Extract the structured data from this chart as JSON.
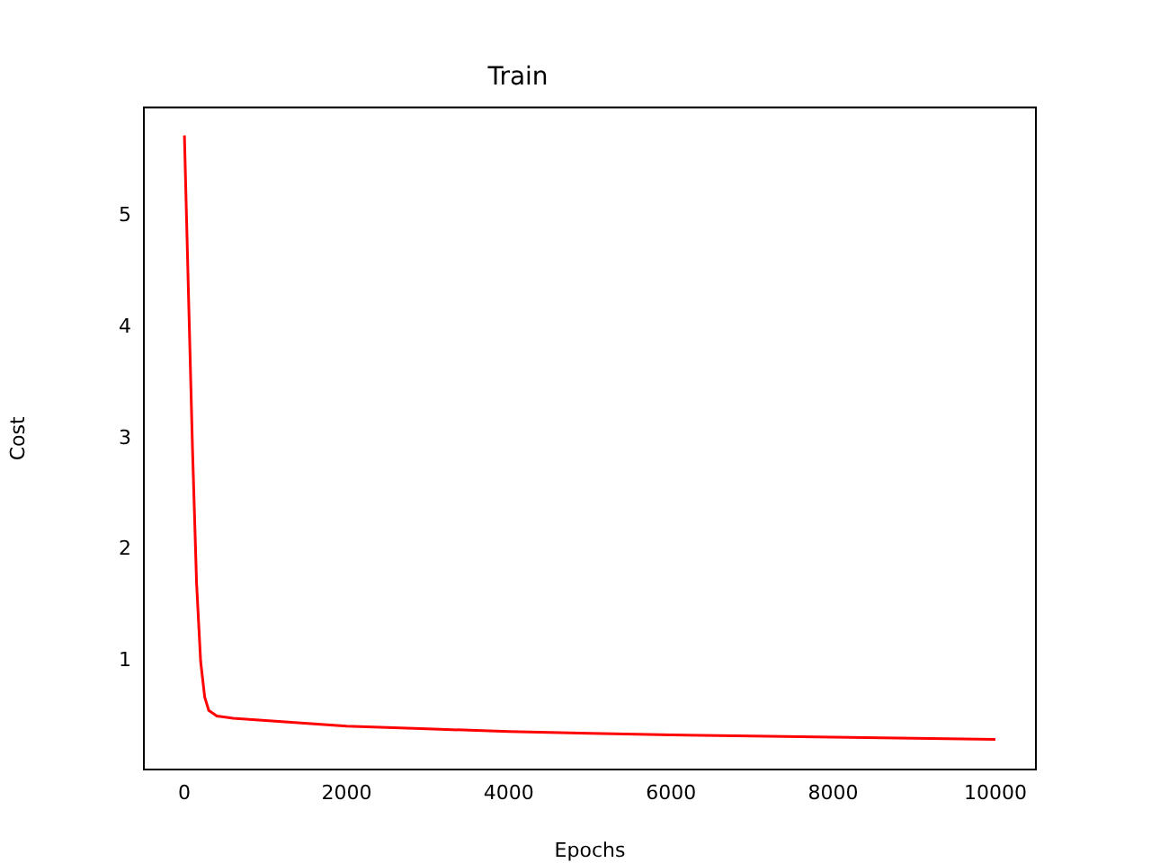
{
  "chart_data": {
    "type": "line",
    "title": "Train",
    "xlabel": "Epochs",
    "ylabel": "Cost",
    "x": [
      0,
      50,
      100,
      150,
      200,
      250,
      300,
      400,
      600,
      1000,
      2000,
      3000,
      4000,
      5000,
      6000,
      7000,
      8000,
      9000,
      10000
    ],
    "series": [
      {
        "color": "#ff0000",
        "values": [
          5.72,
          4.3,
          2.9,
          1.7,
          1.0,
          0.68,
          0.56,
          0.51,
          0.49,
          0.47,
          0.42,
          0.395,
          0.37,
          0.355,
          0.34,
          0.33,
          0.32,
          0.31,
          0.3
        ]
      }
    ],
    "xlim": [
      -500,
      10500
    ],
    "ylim": [
      0.03,
      5.97
    ],
    "xticks": [
      0,
      2000,
      4000,
      6000,
      8000,
      10000
    ],
    "yticks": [
      1,
      2,
      3,
      4,
      5
    ],
    "grid": false,
    "legend": false,
    "marker": "none",
    "line_style": "solid"
  }
}
